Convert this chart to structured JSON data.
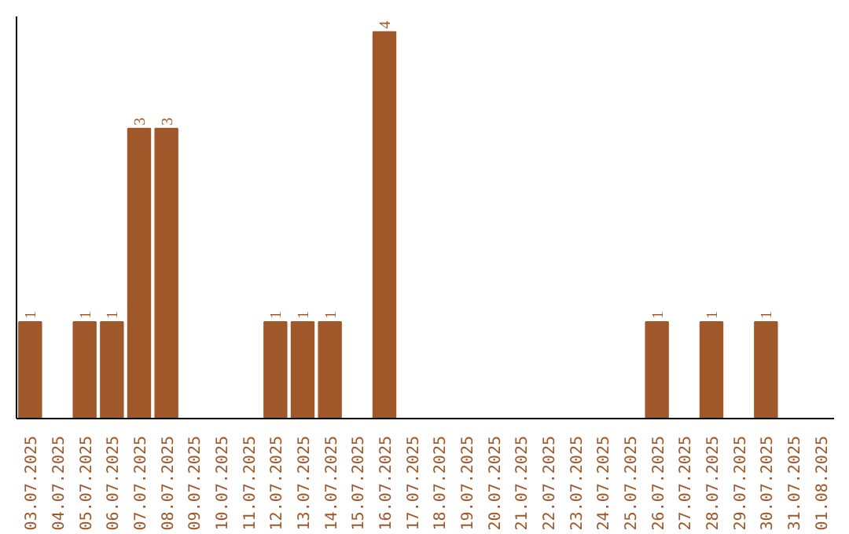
{
  "chart_data": {
    "type": "bar",
    "categories": [
      "03.07.2025",
      "04.07.2025",
      "05.07.2025",
      "06.07.2025",
      "07.07.2025",
      "08.07.2025",
      "09.07.2025",
      "10.07.2025",
      "11.07.2025",
      "12.07.2025",
      "13.07.2025",
      "14.07.2025",
      "15.07.2025",
      "16.07.2025",
      "17.07.2025",
      "18.07.2025",
      "19.07.2025",
      "20.07.2025",
      "21.07.2025",
      "22.07.2025",
      "23.07.2025",
      "24.07.2025",
      "25.07.2025",
      "26.07.2025",
      "27.07.2025",
      "28.07.2025",
      "29.07.2025",
      "30.07.2025",
      "31.07.2025",
      "01.08.2025"
    ],
    "values": [
      1,
      0,
      1,
      1,
      3,
      3,
      0,
      0,
      0,
      1,
      1,
      1,
      0,
      4,
      0,
      0,
      0,
      0,
      0,
      0,
      0,
      0,
      0,
      1,
      0,
      1,
      0,
      1,
      0,
      0
    ],
    "value_labels": [
      "1",
      null,
      "1",
      "1",
      "3",
      "3",
      null,
      null,
      null,
      "1",
      "1",
      "1",
      null,
      "4",
      null,
      null,
      null,
      null,
      null,
      null,
      null,
      null,
      null,
      "1",
      null,
      "1",
      null,
      "1",
      null,
      null
    ],
    "color": "#a0572a",
    "tick_labels": "x"
  }
}
